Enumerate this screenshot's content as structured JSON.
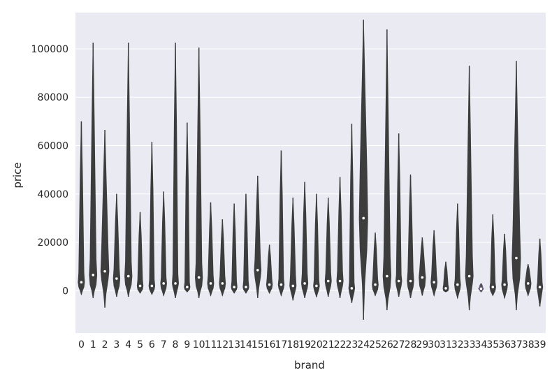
{
  "chart_data": {
    "type": "violin",
    "xlabel": "brand",
    "ylabel": "price",
    "ylim": [
      -17500,
      115000
    ],
    "yticks": [
      0,
      20000,
      40000,
      60000,
      80000,
      100000
    ],
    "ytick_labels": [
      "0",
      "20000",
      "40000",
      "60000",
      "80000",
      "100000"
    ],
    "grid": true,
    "colors": {
      "background": "#eaeaf2",
      "grid": "#ffffff",
      "violin": "#3d3d3d",
      "median": "#ffffff",
      "category_34": "#6f5d86"
    },
    "categories": [
      "0",
      "1",
      "2",
      "3",
      "4",
      "5",
      "6",
      "7",
      "8",
      "9",
      "10",
      "11",
      "12",
      "13",
      "14",
      "15",
      "16",
      "17",
      "18",
      "19",
      "20",
      "21",
      "22",
      "23",
      "24",
      "25",
      "26",
      "27",
      "28",
      "29",
      "30",
      "31",
      "32",
      "33",
      "34",
      "35",
      "36",
      "37",
      "38",
      "39"
    ],
    "series": [
      {
        "min": [
          -1500,
          -3000,
          -7000,
          -2500,
          -2500,
          -1000,
          -1500,
          -2000,
          -3000,
          -500,
          -3000,
          -2000,
          -2000,
          -1000,
          -1000,
          -3000,
          -1000,
          -2000,
          -4000,
          -3000,
          -2500,
          -2500,
          -3000,
          -5000,
          -12000,
          -2000,
          -8000,
          -2500,
          -3000,
          -2000,
          -2000,
          -500,
          -3000,
          -8000,
          -500,
          -2000,
          -3000,
          -8000,
          -2000,
          -6500
        ],
        "max": [
          70000,
          102500,
          66500,
          40000,
          102500,
          32500,
          61500,
          41000,
          102500,
          69500,
          100500,
          36500,
          29500,
          36000,
          40000,
          47500,
          19000,
          58000,
          38500,
          45000,
          40000,
          38500,
          47000,
          69000,
          112000,
          24000,
          108000,
          65000,
          48000,
          22000,
          25000,
          12000,
          36000,
          93000,
          3000,
          31500,
          23500,
          95000,
          11000,
          21500
        ],
        "q1": [
          1500,
          2500,
          4500,
          2000,
          2500,
          500,
          500,
          1000,
          1500,
          500,
          2000,
          1000,
          1000,
          500,
          500,
          5500,
          1000,
          1000,
          500,
          1000,
          500,
          2000,
          2000,
          -500,
          17000,
          500,
          1500,
          2000,
          1500,
          2000,
          1500,
          0,
          500,
          3000,
          500,
          0,
          500,
          5000,
          1000,
          0
        ],
        "q3": [
          7500,
          13000,
          17500,
          9000,
          12000,
          4500,
          4500,
          5500,
          7000,
          3500,
          11500,
          6500,
          6000,
          4000,
          4000,
          13000,
          5000,
          5000,
          6500,
          7000,
          4500,
          7500,
          8000,
          3500,
          50000,
          5000,
          14000,
          6500,
          8000,
          8500,
          6500,
          2500,
          5000,
          14500,
          1000,
          3500,
          4500,
          25000,
          5000,
          3500
        ],
        "median": [
          3500,
          6500,
          8000,
          5000,
          6000,
          2000,
          2000,
          3000,
          3000,
          1500,
          5500,
          3000,
          3000,
          1500,
          1500,
          8500,
          2500,
          2500,
          2000,
          3000,
          2000,
          4000,
          4000,
          1000,
          30000,
          2500,
          6000,
          4000,
          4000,
          5500,
          3500,
          1000,
          2500,
          6000,
          800,
          1500,
          2500,
          13500,
          3000,
          1500
        ]
      }
    ]
  }
}
